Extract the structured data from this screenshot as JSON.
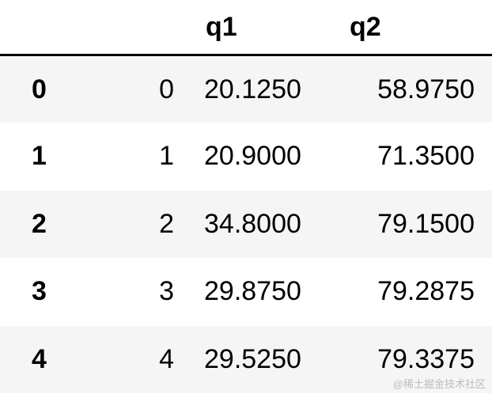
{
  "table": {
    "columns": [
      "",
      "",
      "q1",
      "q2"
    ],
    "rows": [
      {
        "index": "0",
        "c": "0",
        "q1": "20.1250",
        "q2": "58.9750"
      },
      {
        "index": "1",
        "c": "1",
        "q1": "20.9000",
        "q2": "71.3500"
      },
      {
        "index": "2",
        "c": "2",
        "q1": "34.8000",
        "q2": "79.1500"
      },
      {
        "index": "3",
        "c": "3",
        "q1": "29.8750",
        "q2": "79.2875"
      },
      {
        "index": "4",
        "c": "4",
        "q1": "29.5250",
        "q2": "79.3375"
      }
    ]
  },
  "watermark": "@稀土掘金技术社区"
}
